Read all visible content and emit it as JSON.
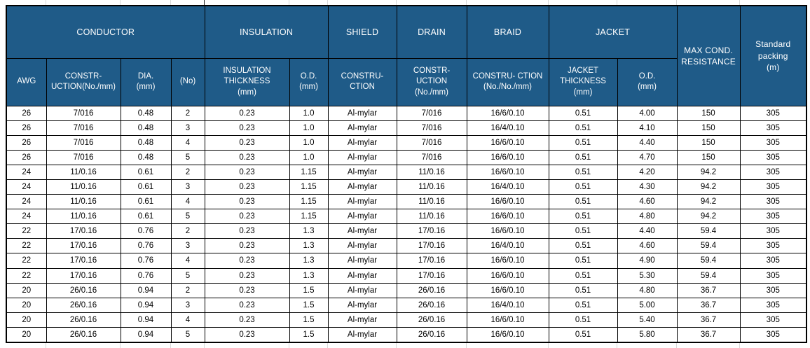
{
  "colors": {
    "header_bg": "#1F5B88",
    "header_text": "#FFFFFF",
    "border": "#000000",
    "grid_line": "#D9D9D9",
    "body_text": "#000000",
    "row_bg": "#FFFFFF"
  },
  "table": {
    "column_groups": [
      {
        "label": "CONDUCTOR",
        "colspan": 4
      },
      {
        "label": "INSULATION",
        "colspan": 2
      },
      {
        "label": "SHIELD",
        "colspan": 1
      },
      {
        "label": "DRAIN",
        "colspan": 1
      },
      {
        "label": "BRAID",
        "colspan": 1
      },
      {
        "label": "JACKET",
        "colspan": 2
      }
    ],
    "merged_headers": [
      {
        "label": "MAX COND.\nRESISTANCE"
      },
      {
        "label": "Standard\npacking\n(m)"
      }
    ],
    "sub_headers": [
      "AWG",
      "CONSTR-\nUCTION(No./mm)",
      "DIA.\n(mm)",
      "(No)",
      "INSULATION\nTHICKNESS\n(mm)",
      "O.D.\n(mm)",
      "CONSTRU-\nCTION",
      "CONSTR-\nUCTION\n(No./mm)",
      "CONSTRU- CTION\n(No./No./mm)",
      "JACKET\nTHICKNESS\n(mm)",
      "O.D.\n(mm)"
    ],
    "rows": [
      [
        "26",
        "7/016",
        "0.48",
        "2",
        "0.23",
        "1.0",
        "Al-mylar",
        "7/016",
        "16/6/0.10",
        "0.51",
        "4.00",
        "150",
        "305"
      ],
      [
        "26",
        "7/016",
        "0.48",
        "3",
        "0.23",
        "1.0",
        "Al-mylar",
        "7/016",
        "16/4/0.10",
        "0.51",
        "4.10",
        "150",
        "305"
      ],
      [
        "26",
        "7/016",
        "0.48",
        "4",
        "0.23",
        "1.0",
        "Al-mylar",
        "7/016",
        "16/6/0.10",
        "0.51",
        "4.40",
        "150",
        "305"
      ],
      [
        "26",
        "7/016",
        "0.48",
        "5",
        "0.23",
        "1.0",
        "Al-mylar",
        "7/016",
        "16/6/0.10",
        "0.51",
        "4.70",
        "150",
        "305"
      ],
      [
        "24",
        "11/0.16",
        "0.61",
        "2",
        "0.23",
        "1.15",
        "Al-mylar",
        "11/0.16",
        "16/6/0.10",
        "0.51",
        "4.20",
        "94.2",
        "305"
      ],
      [
        "24",
        "11/0.16",
        "0.61",
        "3",
        "0.23",
        "1.15",
        "Al-mylar",
        "11/0.16",
        "16/4/0.10",
        "0.51",
        "4.30",
        "94.2",
        "305"
      ],
      [
        "24",
        "11/0.16",
        "0.61",
        "4",
        "0.23",
        "1.15",
        "Al-mylar",
        "11/0.16",
        "16/6/0.10",
        "0.51",
        "4.60",
        "94.2",
        "305"
      ],
      [
        "24",
        "11/0.16",
        "0.61",
        "5",
        "0.23",
        "1.15",
        "Al-mylar",
        "11/0.16",
        "16/6/0.10",
        "0.51",
        "4.80",
        "94.2",
        "305"
      ],
      [
        "22",
        "17/0.16",
        "0.76",
        "2",
        "0.23",
        "1.3",
        "Al-mylar",
        "17/0.16",
        "16/6/0.10",
        "0.51",
        "4.40",
        "59.4",
        "305"
      ],
      [
        "22",
        "17/0.16",
        "0.76",
        "3",
        "0.23",
        "1.3",
        "Al-mylar",
        "17/0.16",
        "16/4/0.10",
        "0.51",
        "4.60",
        "59.4",
        "305"
      ],
      [
        "22",
        "17/0.16",
        "0.76",
        "4",
        "0.23",
        "1.3",
        "Al-mylar",
        "17/0.16",
        "16/6/0.10",
        "0.51",
        "4.90",
        "59.4",
        "305"
      ],
      [
        "22",
        "17/0.16",
        "0.76",
        "5",
        "0.23",
        "1.3",
        "Al-mylar",
        "17/0.16",
        "16/6/0.10",
        "0.51",
        "5.30",
        "59.4",
        "305"
      ],
      [
        "20",
        "26/0.16",
        "0.94",
        "2",
        "0.23",
        "1.5",
        "Al-mylar",
        "26/0.16",
        "16/6/0.10",
        "0.51",
        "4.80",
        "36.7",
        "305"
      ],
      [
        "20",
        "26/0.16",
        "0.94",
        "3",
        "0.23",
        "1.5",
        "Al-mylar",
        "26/0.16",
        "16/4/0.10",
        "0.51",
        "5.00",
        "36.7",
        "305"
      ],
      [
        "20",
        "26/0.16",
        "0.94",
        "4",
        "0.23",
        "1.5",
        "Al-mylar",
        "26/0.16",
        "16/6/0.10",
        "0.51",
        "5.40",
        "36.7",
        "305"
      ],
      [
        "20",
        "26/0.16",
        "0.94",
        "5",
        "0.23",
        "1.5",
        "Al-mylar",
        "26/0.16",
        "16/6/0.10",
        "0.51",
        "5.80",
        "36.7",
        "305"
      ]
    ]
  }
}
